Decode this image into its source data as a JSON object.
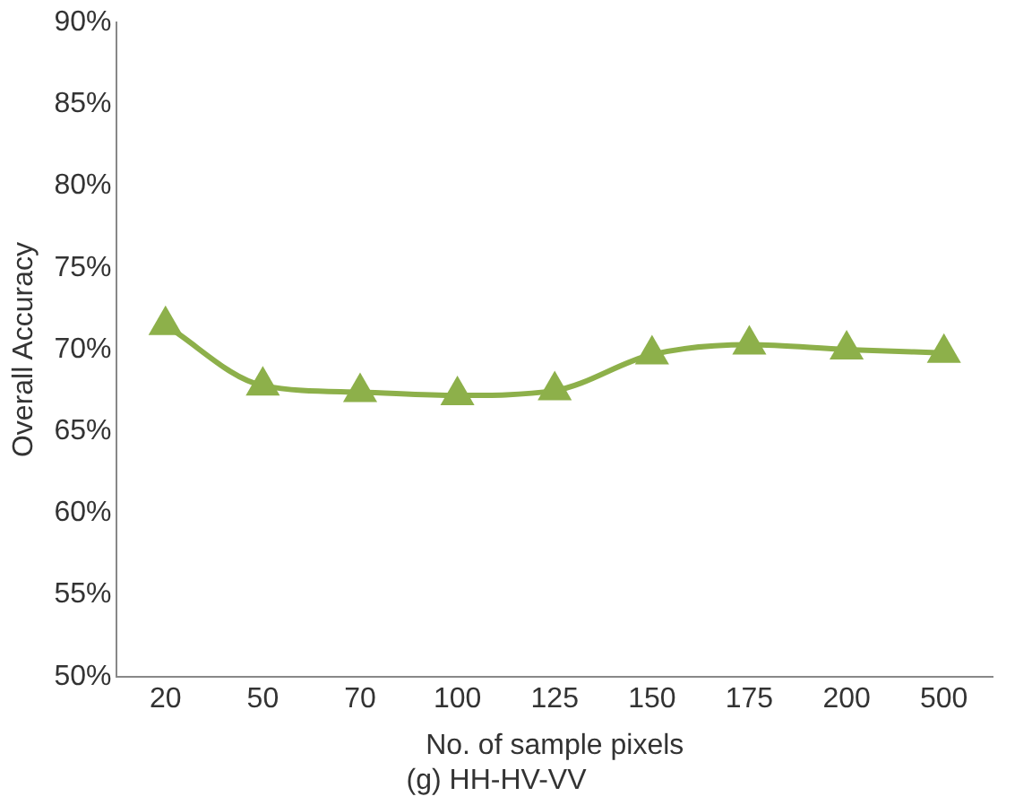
{
  "chart_data": {
    "type": "line",
    "title": "(g) HH-HV-VV",
    "xlabel": "No. of sample pixels",
    "ylabel": "Overall Accuracy",
    "categories": [
      "20",
      "50",
      "70",
      "100",
      "125",
      "150",
      "175",
      "200",
      "500"
    ],
    "series": [
      {
        "color": "#8db04a",
        "values": [
          71.5,
          67.8,
          67.4,
          67.2,
          67.5,
          69.7,
          70.3,
          70.0,
          69.8
        ]
      }
    ],
    "ylim": [
      50,
      90
    ],
    "yticks": [
      {
        "value": 50,
        "label": "50%"
      },
      {
        "value": 55,
        "label": "55%"
      },
      {
        "value": 60,
        "label": "60%"
      },
      {
        "value": 65,
        "label": "65%"
      },
      {
        "value": 70,
        "label": "70%"
      },
      {
        "value": 75,
        "label": "75%"
      },
      {
        "value": 80,
        "label": "80%"
      },
      {
        "value": 85,
        "label": "85%"
      },
      {
        "value": 90,
        "label": "90%"
      }
    ],
    "grid": false,
    "legend": false,
    "marker": "triangle",
    "line_style": "solid"
  }
}
